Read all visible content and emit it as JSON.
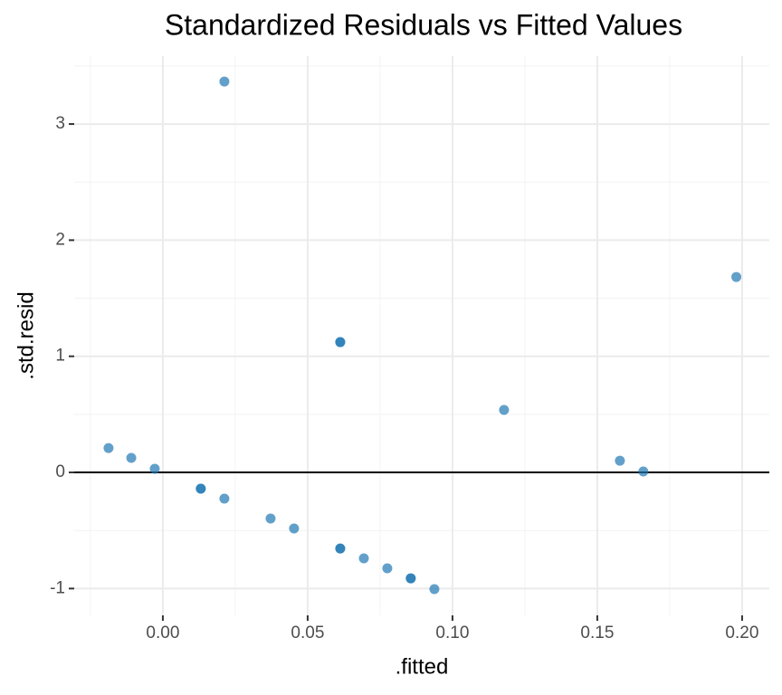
{
  "chart_data": {
    "type": "scatter",
    "title": "Standardized Residuals vs Fitted Values",
    "x_label": ".fitted",
    "y_label": ".std.resid",
    "color": "#1f77b4",
    "x": [
      0.02125,
      0.198,
      0.06125,
      0.06125,
      0.1178,
      -0.01875,
      -0.0109,
      -0.0028,
      0.0131,
      0.0131,
      0.02125,
      0.0372,
      0.0453,
      0.06125,
      0.06125,
      0.0694,
      0.0775,
      0.0856,
      0.0856,
      0.09375,
      0.1578,
      0.1659
    ],
    "values": [
      3.366,
      1.683,
      1.122,
      1.122,
      0.538,
      0.21,
      0.125,
      0.031,
      -0.14,
      -0.14,
      -0.226,
      -0.397,
      -0.483,
      -0.655,
      -0.655,
      -0.74,
      -0.826,
      -0.912,
      -0.912,
      -1.005,
      0.101,
      0.008
    ],
    "xlim": [
      -0.0306,
      0.2094
    ],
    "ylim": [
      -1.231,
      3.585
    ],
    "xticks": [
      {
        "value": 0,
        "label": "0.00"
      },
      {
        "value": 0.05,
        "label": "0.05"
      },
      {
        "value": 0.1,
        "label": "0.10"
      },
      {
        "value": 0.15,
        "label": "0.15"
      },
      {
        "value": 0.2,
        "label": "0.20"
      }
    ],
    "yticks": [
      -1,
      0,
      1,
      2,
      3
    ],
    "hline": 0,
    "grid": true
  }
}
